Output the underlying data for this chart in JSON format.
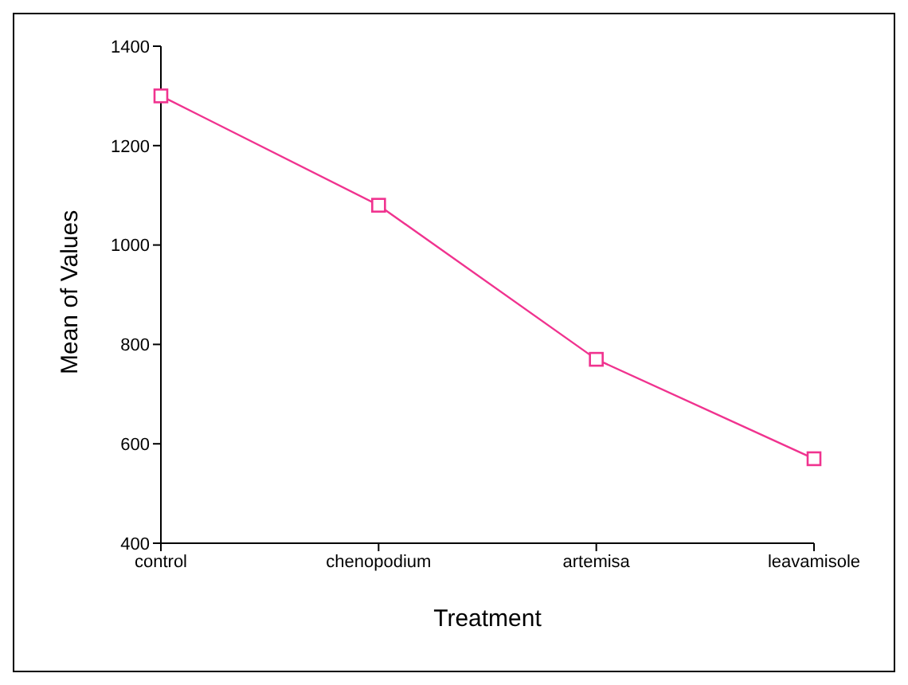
{
  "chart_data": {
    "type": "line",
    "xlabel": "Treatment",
    "ylabel": "Mean of Values",
    "categories": [
      "control",
      "chenopodium",
      "artemisa",
      "leavamisole"
    ],
    "series": [
      {
        "color": "#f0338f",
        "values": [
          1300,
          1080,
          770,
          570
        ]
      }
    ],
    "ylim": [
      400,
      1400
    ],
    "yticks": [
      400,
      600,
      800,
      1000,
      1200,
      1400
    ],
    "grid": false,
    "legend": false,
    "marker": "square",
    "line_style": "solid"
  }
}
